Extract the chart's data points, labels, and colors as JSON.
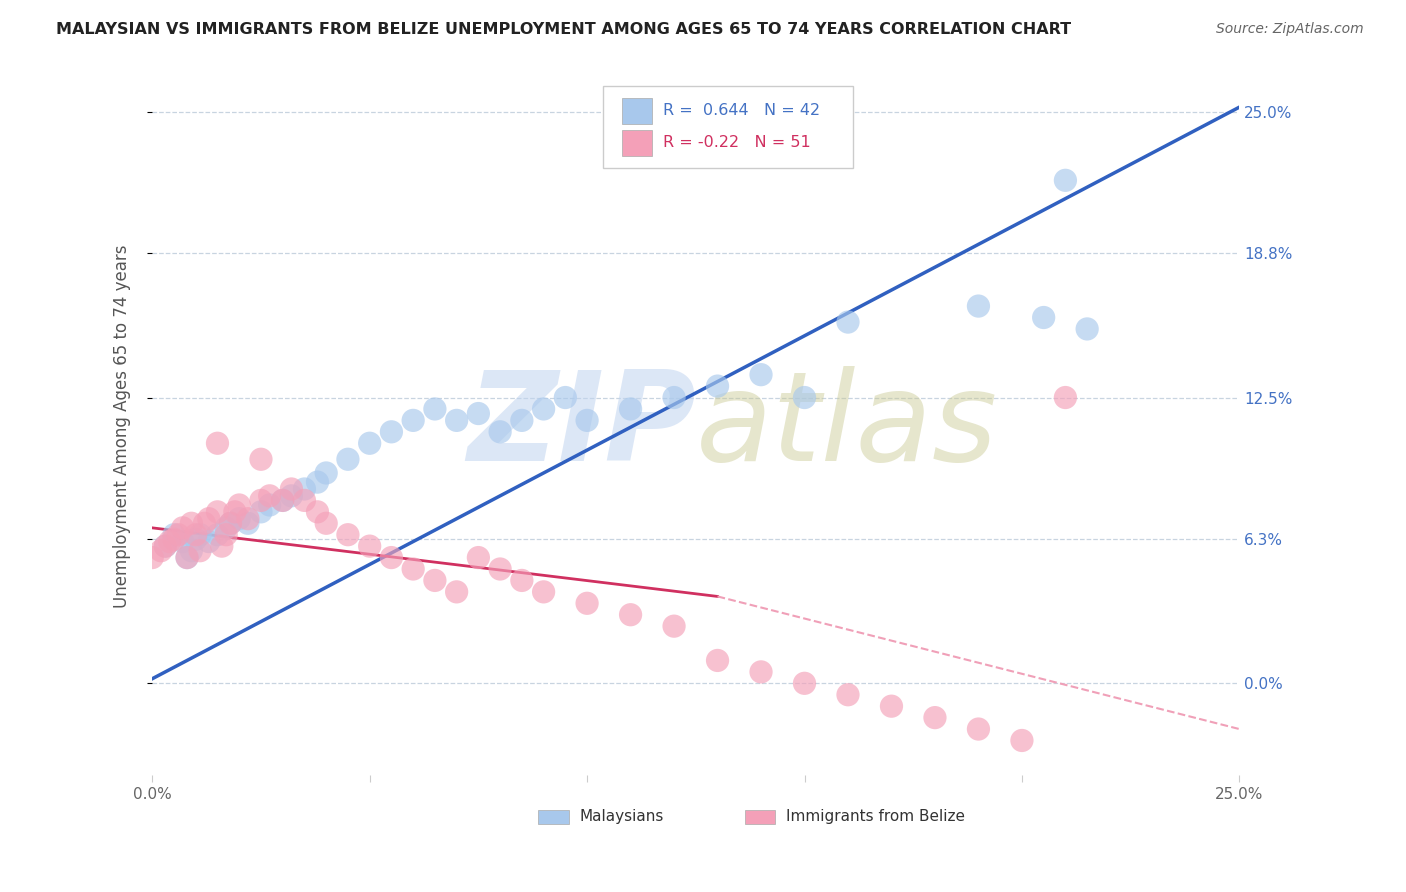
{
  "title": "MALAYSIAN VS IMMIGRANTS FROM BELIZE UNEMPLOYMENT AMONG AGES 65 TO 74 YEARS CORRELATION CHART",
  "source": "Source: ZipAtlas.com",
  "ylabel": "Unemployment Among Ages 65 to 74 years",
  "x_min": 0.0,
  "x_max": 0.25,
  "y_min": -0.04,
  "y_max": 0.265,
  "y_ticks": [
    0.0,
    0.063,
    0.125,
    0.188,
    0.25
  ],
  "y_tick_labels_right": [
    "0.0%",
    "6.3%",
    "12.5%",
    "18.8%",
    "25.0%"
  ],
  "blue_R": 0.644,
  "blue_N": 42,
  "pink_R": -0.22,
  "pink_N": 51,
  "blue_color": "#A8C8EC",
  "pink_color": "#F4A0B8",
  "blue_line_color": "#3060C0",
  "pink_line_solid_color": "#D03060",
  "pink_line_dash_color": "#F0A0B8",
  "background_color": "#FFFFFF",
  "grid_color": "#C8D4E0",
  "legend_label_blue": "Malaysians",
  "legend_label_pink": "Immigrants from Belize",
  "title_color": "#222222",
  "source_color": "#666666",
  "axis_label_color": "#555555",
  "right_tick_color": "#4472C4",
  "blue_scatter_x": [
    0.003,
    0.005,
    0.007,
    0.008,
    0.009,
    0.01,
    0.011,
    0.013,
    0.015,
    0.017,
    0.018,
    0.02,
    0.022,
    0.025,
    0.027,
    0.03,
    0.032,
    0.035,
    0.038,
    0.04,
    0.045,
    0.05,
    0.055,
    0.06,
    0.065,
    0.07,
    0.075,
    0.08,
    0.085,
    0.09,
    0.095,
    0.1,
    0.11,
    0.12,
    0.13,
    0.14,
    0.15,
    0.16,
    0.19,
    0.205,
    0.21,
    0.215
  ],
  "blue_scatter_y": [
    0.06,
    0.065,
    0.062,
    0.055,
    0.058,
    0.063,
    0.065,
    0.062,
    0.065,
    0.068,
    0.07,
    0.072,
    0.07,
    0.075,
    0.078,
    0.08,
    0.082,
    0.085,
    0.088,
    0.092,
    0.098,
    0.105,
    0.11,
    0.115,
    0.12,
    0.115,
    0.118,
    0.11,
    0.115,
    0.12,
    0.125,
    0.115,
    0.12,
    0.125,
    0.13,
    0.135,
    0.125,
    0.158,
    0.165,
    0.16,
    0.22,
    0.155
  ],
  "pink_scatter_x": [
    0.0,
    0.002,
    0.003,
    0.004,
    0.005,
    0.006,
    0.007,
    0.008,
    0.009,
    0.01,
    0.011,
    0.012,
    0.013,
    0.015,
    0.016,
    0.017,
    0.018,
    0.019,
    0.02,
    0.022,
    0.025,
    0.027,
    0.03,
    0.032,
    0.035,
    0.038,
    0.04,
    0.045,
    0.05,
    0.055,
    0.06,
    0.065,
    0.07,
    0.075,
    0.08,
    0.085,
    0.09,
    0.1,
    0.11,
    0.12,
    0.13,
    0.14,
    0.15,
    0.16,
    0.17,
    0.18,
    0.19,
    0.2,
    0.21,
    0.015,
    0.025
  ],
  "pink_scatter_y": [
    0.055,
    0.058,
    0.06,
    0.062,
    0.063,
    0.065,
    0.068,
    0.055,
    0.07,
    0.065,
    0.058,
    0.07,
    0.072,
    0.075,
    0.06,
    0.065,
    0.07,
    0.075,
    0.078,
    0.072,
    0.08,
    0.082,
    0.08,
    0.085,
    0.08,
    0.075,
    0.07,
    0.065,
    0.06,
    0.055,
    0.05,
    0.045,
    0.04,
    0.055,
    0.05,
    0.045,
    0.04,
    0.035,
    0.03,
    0.025,
    0.01,
    0.005,
    0.0,
    -0.005,
    -0.01,
    -0.015,
    -0.02,
    -0.025,
    0.125,
    0.105,
    0.098
  ]
}
